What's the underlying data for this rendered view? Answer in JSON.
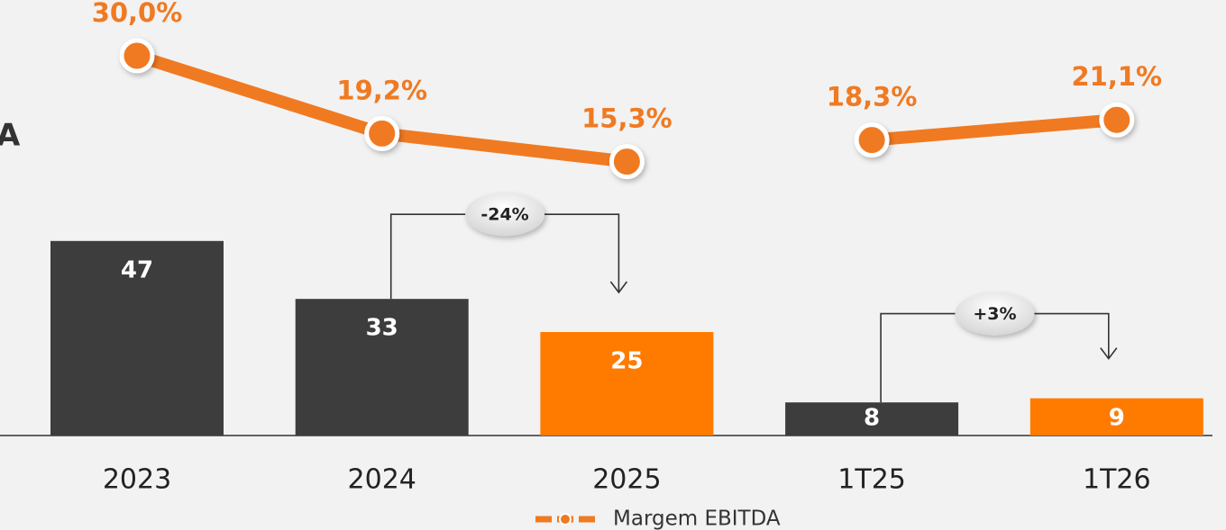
{
  "chart_data": {
    "type": "bar_line",
    "title": "A",
    "categories": [
      "2023",
      "2024",
      "2025",
      "1T25",
      "1T26"
    ],
    "series": [
      {
        "name": "EBITDA",
        "type": "bar",
        "values": [
          47,
          33,
          25,
          8,
          9
        ],
        "colors": [
          "#3d3d3d",
          "#3d3d3d",
          "#ff7b00",
          "#3d3d3d",
          "#ff7b00"
        ]
      },
      {
        "name": "Margem EBITDA",
        "type": "line",
        "axis": "y2",
        "color": "#f07a22",
        "values": [
          30.0,
          19.2,
          15.3,
          18.3,
          21.1
        ],
        "value_labels": [
          "30,0%",
          "19,2%",
          "15,3%",
          "18,3%",
          "21,1%"
        ],
        "line_break_before": [
          3
        ]
      }
    ],
    "ylim": [
      0,
      50
    ],
    "y2lim": [
      5,
      35
    ],
    "annotations": [
      {
        "text": "-24%",
        "from": 1,
        "to": 2
      },
      {
        "text": "+3%",
        "from": 3,
        "to": 4
      }
    ],
    "legend": "bottom"
  }
}
